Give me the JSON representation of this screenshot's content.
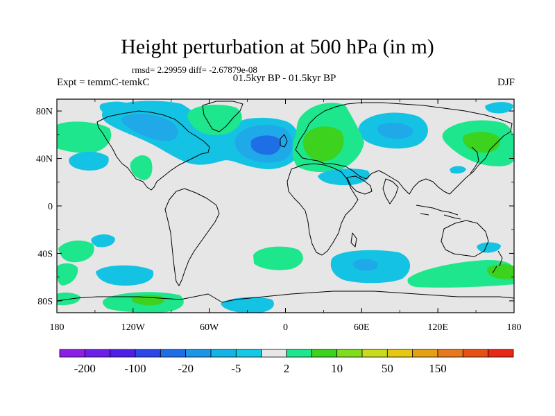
{
  "title": "Height perturbation at 500 hPa (in m)",
  "stats": {
    "text": "rmsd= 2.29959 diff= -2.67879e-08"
  },
  "experiment": {
    "text": "Expt = temmC-temkC"
  },
  "period": {
    "text": "01.5kyr BP - 01.5kyr BP"
  },
  "season": {
    "text": "DJF"
  },
  "axes": {
    "x_ticks": [
      "180",
      "120W",
      "60W",
      "0",
      "60E",
      "120E",
      "180"
    ],
    "y_ticks": [
      "80N",
      "40N",
      "0",
      "40S",
      "80S"
    ]
  },
  "colorbar": {
    "labels": [
      "-200",
      "-100",
      "-20",
      "-5",
      "2",
      "10",
      "50",
      "150"
    ],
    "colors": [
      "#8c1ee6",
      "#6e1ee6",
      "#4d1ee6",
      "#2d46e6",
      "#1e6ee6",
      "#1e96e6",
      "#14b4e6",
      "#14c8e6",
      "#e6e6e6",
      "#1ee68c",
      "#3cd21e",
      "#82dc1e",
      "#c8dc1e",
      "#e6c814",
      "#e6a014",
      "#e6781e",
      "#e65014",
      "#e62814"
    ]
  },
  "colors": {
    "background": "#e6e6e6",
    "neg_light": "#14c3e3",
    "neg_mid": "#1fa9e8",
    "neg_dark": "#1e6ee6",
    "pos_light": "#1ee68c",
    "pos_mid": "#3cd21e"
  }
}
